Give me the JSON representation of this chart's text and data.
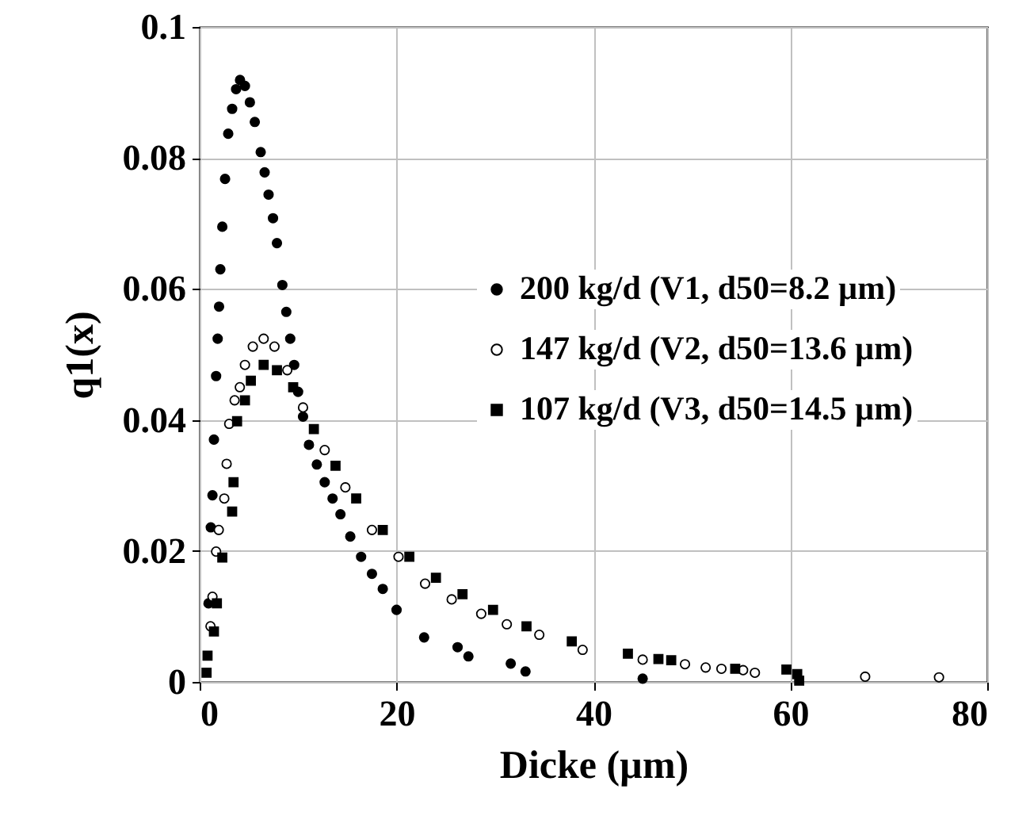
{
  "chart_data": {
    "type": "scatter",
    "xlabel": "Dicke (µm)",
    "ylabel": "q1(x)",
    "xlim": [
      0,
      80
    ],
    "xticks": [
      0,
      20,
      40,
      60,
      80
    ],
    "ylim": [
      0,
      0.1
    ],
    "yticks": [
      0,
      0.02,
      0.04,
      0.06,
      0.08,
      0.1
    ],
    "grid": true,
    "legend": "right",
    "series": [
      {
        "name": "200 kg/d (V1, d50=8.2 µm)",
        "color": "#000000",
        "marker": "circle",
        "x": [
          0.9,
          1.13,
          1.3,
          1.45,
          1.67,
          1.83,
          1.97,
          2.1,
          2.3,
          2.58,
          2.9,
          3.3,
          3.7,
          4.1,
          4.6,
          5.1,
          5.6,
          6.2,
          6.6,
          7.0,
          7.45,
          7.85,
          8.4,
          8.8,
          9.2,
          9.6,
          10,
          10.5,
          11.1,
          11.9,
          12.7,
          13.5,
          14.3,
          15.3,
          16.4,
          17.5,
          18.6,
          20,
          22.8,
          26.2,
          27.3,
          31.6,
          33.1,
          45
        ],
        "values": [
          0.012,
          0.0236,
          0.0285,
          0.037,
          0.0467,
          0.0524,
          0.0573,
          0.063,
          0.0695,
          0.0768,
          0.0837,
          0.0875,
          0.0905,
          0.0919,
          0.091,
          0.0885,
          0.0855,
          0.0809,
          0.0778,
          0.0744,
          0.0708,
          0.067,
          0.0606,
          0.0565,
          0.0524,
          0.0484,
          0.0443,
          0.0405,
          0.0362,
          0.0332,
          0.0305,
          0.028,
          0.0256,
          0.0222,
          0.0191,
          0.0165,
          0.0142,
          0.011,
          0.0068,
          0.0053,
          0.0039,
          0.0028,
          0.0016,
          0.0005
        ]
      },
      {
        "name": "147 kg/d (V2, d50=13.6 µm)",
        "color": "#000000",
        "marker": "circle",
        "x": [
          1.1,
          1.3,
          1.67,
          1.94,
          2.5,
          2.74,
          3.0,
          3.55,
          4.08,
          4.6,
          5.4,
          6.5,
          7.6,
          8.9,
          10.5,
          12.7,
          14.8,
          17.5,
          20.2,
          22.9,
          25.6,
          28.6,
          31.2,
          34.5,
          38.9,
          45,
          49.3,
          51.4,
          53,
          55.2,
          56.4,
          67.6,
          75.1
        ],
        "values": [
          0.0085,
          0.013,
          0.0199,
          0.0232,
          0.028,
          0.0333,
          0.0394,
          0.043,
          0.045,
          0.0484,
          0.0512,
          0.0524,
          0.0512,
          0.0476,
          0.0419,
          0.0354,
          0.0297,
          0.0232,
          0.0191,
          0.015,
          0.0126,
          0.0104,
          0.0088,
          0.0072,
          0.0049,
          0.0034,
          0.0027,
          0.0022,
          0.002,
          0.0018,
          0.0014,
          0.0008,
          0.0007
        ]
      },
      {
        "name": "107 kg/d (V3, d50=14.5 µm)",
        "color": "#000000",
        "marker": "square",
        "x": [
          0.7,
          0.8,
          1.45,
          1.75,
          2.3,
          3.3,
          3.44,
          3.8,
          4.6,
          5.2,
          6.5,
          7.85,
          9.5,
          11.6,
          13.8,
          15.9,
          18.6,
          21.3,
          24,
          26.7,
          29.8,
          33.2,
          37.8,
          43.5,
          46.6,
          47.9,
          54.4,
          59.6,
          60.7,
          60.9
        ],
        "values": [
          0.0014,
          0.004,
          0.0077,
          0.012,
          0.019,
          0.026,
          0.0305,
          0.0398,
          0.043,
          0.046,
          0.0484,
          0.0476,
          0.045,
          0.0386,
          0.033,
          0.028,
          0.0232,
          0.0191,
          0.0159,
          0.0134,
          0.011,
          0.0085,
          0.0062,
          0.0043,
          0.0035,
          0.0033,
          0.002,
          0.0019,
          0.0012,
          0.0002
        ]
      }
    ]
  }
}
